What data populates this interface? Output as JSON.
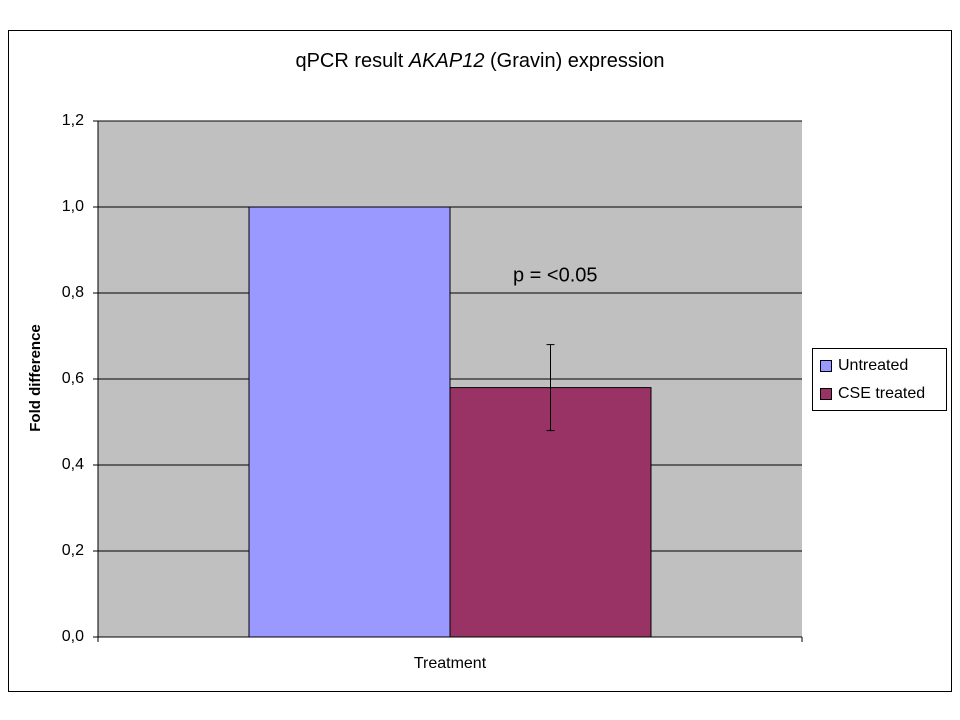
{
  "chart_data": {
    "type": "bar",
    "title": [
      "qPCR result",
      "AKAP12",
      "(Gravin) expression"
    ],
    "categories": [
      "Treatment"
    ],
    "series": [
      {
        "name": "Untreated",
        "color": "#9999ff",
        "values": [
          1.0
        ]
      },
      {
        "name": "CSE treated",
        "color": "#993366",
        "values": [
          0.58
        ],
        "errors": [
          0.1
        ]
      }
    ],
    "ylabel": "Fold difference",
    "annotation": "p = <0.05",
    "ylim": [
      0,
      1.2
    ],
    "yticks": [
      {
        "value": 0,
        "label": "0,0"
      },
      {
        "value": 0.2,
        "label": "0,2"
      },
      {
        "value": 0.4,
        "label": "0,4"
      },
      {
        "value": 0.6,
        "label": "0,6"
      },
      {
        "value": 0.8,
        "label": "0,8"
      },
      {
        "value": 1.0,
        "label": "1,0"
      },
      {
        "value": 1.2,
        "label": "1,2"
      }
    ],
    "grid": true,
    "legend": "right"
  }
}
